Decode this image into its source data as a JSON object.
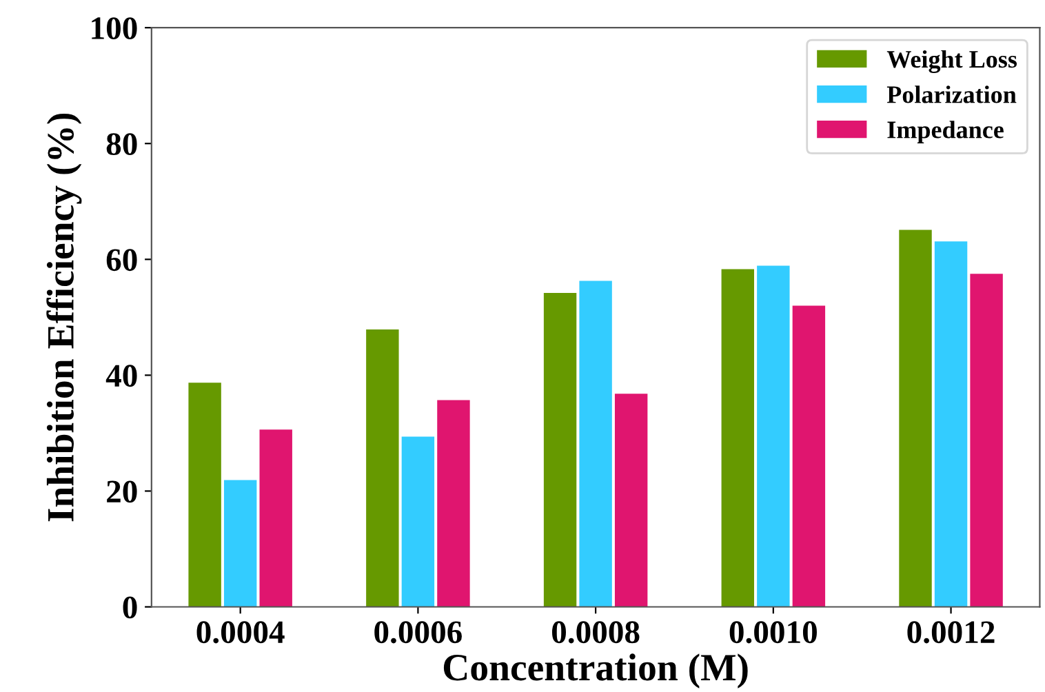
{
  "chart_data": {
    "type": "bar",
    "xlabel": "Concentration (M)",
    "ylabel": "Inhibition Efficiency (%)",
    "categories": [
      "0.0004",
      "0.0006",
      "0.0008",
      "0.0010",
      "0.0012"
    ],
    "series": [
      {
        "name": "Weight Loss",
        "color": "#669900",
        "values": [
          38.7,
          47.9,
          54.2,
          58.3,
          65.1
        ]
      },
      {
        "name": "Polarization",
        "color": "#33ccff",
        "values": [
          21.9,
          29.4,
          56.3,
          58.9,
          63.1
        ]
      },
      {
        "name": "Impedance",
        "color": "#e0156f",
        "values": [
          30.6,
          35.7,
          36.8,
          52.0,
          57.5
        ]
      }
    ],
    "ylim": [
      0,
      100
    ],
    "yticks": [
      0,
      20,
      40,
      60,
      80,
      100
    ],
    "grid": false,
    "legend": "top right"
  }
}
